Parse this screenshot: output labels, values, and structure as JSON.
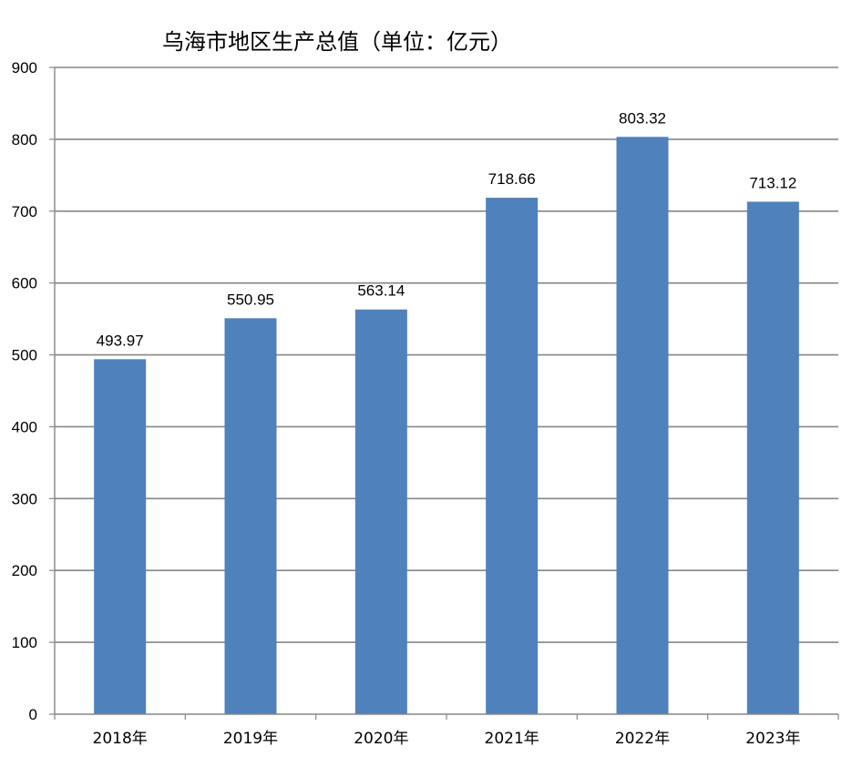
{
  "chart_data": {
    "type": "bar",
    "title": "乌海市地区生产总值（单位：亿元）",
    "categories": [
      "2018年",
      "2019年",
      "2020年",
      "2021年",
      "2022年",
      "2023年"
    ],
    "values": [
      493.97,
      550.95,
      563.14,
      718.66,
      803.32,
      713.12
    ],
    "data_labels": [
      "493.97",
      "550.95",
      "563.14",
      "718.66",
      "803.32",
      "713.12"
    ],
    "ylim": [
      0,
      900
    ],
    "yticks": [
      0,
      100,
      200,
      300,
      400,
      500,
      600,
      700,
      800,
      900
    ],
    "grid": true,
    "legend": "none",
    "colors": {
      "bar": "#4f81bd",
      "grid": "#868686",
      "axis": "#868686"
    }
  }
}
